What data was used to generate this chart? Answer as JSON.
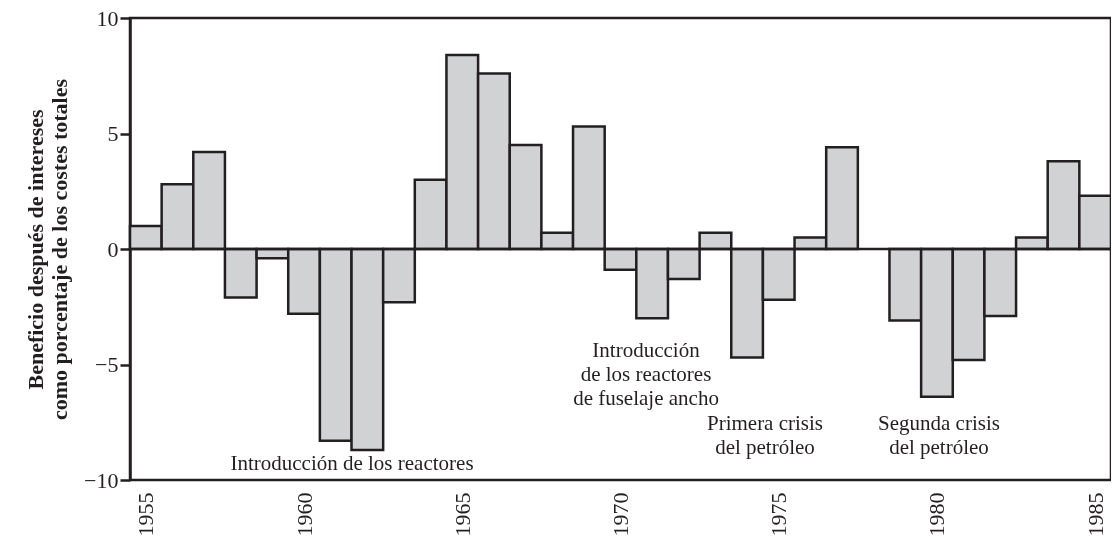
{
  "chart_data": {
    "type": "bar",
    "ylabel": "Beneficio después de intereses\ncomo porcentaje de los costes totales",
    "x": [
      1955,
      1956,
      1957,
      1958,
      1959,
      1960,
      1961,
      1962,
      1963,
      1964,
      1965,
      1966,
      1967,
      1968,
      1969,
      1970,
      1971,
      1972,
      1973,
      1974,
      1975,
      1976,
      1977,
      1978,
      1979,
      1980,
      1981,
      1982,
      1983,
      1984,
      1985
    ],
    "values": [
      1.0,
      2.8,
      4.2,
      -2.1,
      -0.4,
      -2.8,
      -8.3,
      -8.7,
      -2.3,
      3.0,
      8.4,
      7.6,
      4.5,
      0.7,
      5.3,
      -0.9,
      -3.0,
      -1.3,
      0.7,
      -4.7,
      -2.2,
      0.5,
      4.4,
      null,
      -3.1,
      -6.4,
      -4.8,
      -2.9,
      0.5,
      3.8,
      2.3
    ],
    "color": "#d1d2d4",
    "xlim": [
      1954.5,
      1985.5
    ],
    "xticks": [
      1955,
      1960,
      1965,
      1970,
      1975,
      1980,
      1985
    ],
    "ylim": [
      -10,
      10
    ],
    "yticks": [
      -10,
      -5,
      0,
      5,
      10
    ],
    "ref_lines": [
      {
        "axis": "y",
        "value": 0,
        "label": null
      }
    ],
    "annotations": [
      "Introducción de los reactores",
      "Introducción\nde los reactores\nde fuselaje ancho",
      "Primera crisis\ndel petróleo",
      "Segunda crisis\ndel petróleo"
    ],
    "grid": false
  }
}
